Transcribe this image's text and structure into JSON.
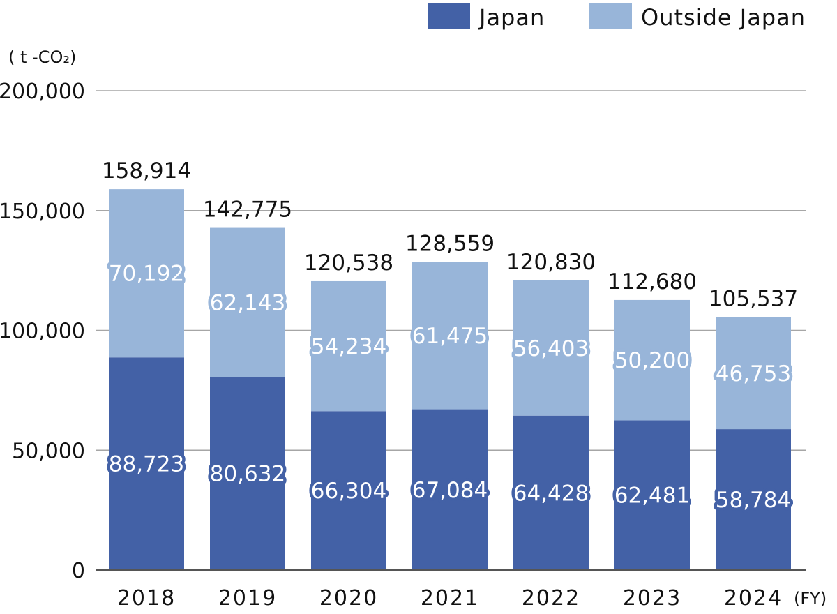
{
  "chart_data": {
    "type": "bar",
    "stacked": true,
    "categories": [
      "2018",
      "2019",
      "2020",
      "2021",
      "2022",
      "2023",
      "2024"
    ],
    "series": [
      {
        "name": "Japan",
        "color": "#4361a6",
        "values": [
          88723,
          80632,
          66304,
          67084,
          64428,
          62481,
          58784
        ]
      },
      {
        "name": "Outside Japan",
        "color": "#98b5d9",
        "values": [
          70192,
          62143,
          54234,
          61475,
          56403,
          50200,
          46753
        ]
      }
    ],
    "totals": [
      158914,
      142775,
      120538,
      128559,
      120830,
      112680,
      105537
    ],
    "labels": {
      "totals": [
        "158,914",
        "142,775",
        "120,538",
        "128,559",
        "120,830",
        "112,680",
        "105,537"
      ],
      "japan": [
        "88,723",
        "80,632",
        "66,304",
        "67,084",
        "64,428",
        "62,481",
        "58,784"
      ],
      "outside": [
        "70,192",
        "62,143",
        "54,234",
        "61,475",
        "56,403",
        "50,200",
        "46,753"
      ]
    },
    "y_unit": "( t -CO₂)",
    "x_unit": "(FY)",
    "ylim": [
      0,
      200000
    ],
    "yticks": [
      0,
      50000,
      100000,
      150000,
      200000
    ],
    "ytick_labels": [
      "0",
      "50,000",
      "100,000",
      "150,000",
      "200,000"
    ],
    "grid": true,
    "legend_position": "top-right"
  }
}
